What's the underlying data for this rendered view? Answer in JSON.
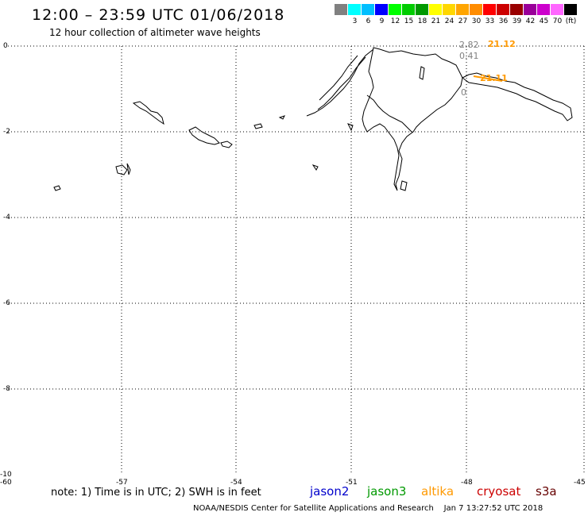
{
  "header": {
    "title": "12:00 – 23:59 UTC 01/06/2018",
    "subtitle": "12 hour collection of altimeter wave heights"
  },
  "color_scale": {
    "colors": [
      "#808080",
      "#00ffff",
      "#00bfff",
      "#0000ff",
      "#00ff00",
      "#00cc00",
      "#009900",
      "#ffff00",
      "#ffd700",
      "#ffa500",
      "#ff8c00",
      "#ff0000",
      "#cc0000",
      "#990000",
      "#990099",
      "#cc00cc",
      "#ff66ff",
      "#000000"
    ],
    "labels": [
      "3",
      "6",
      "9",
      "12",
      "15",
      "18",
      "21",
      "24",
      "27",
      "30",
      "33",
      "36",
      "39",
      "42",
      "45",
      "70"
    ],
    "unit": "(ft)"
  },
  "axes": {
    "y_labels": [
      "0",
      "-2",
      "-4",
      "-6",
      "-8",
      "-10"
    ],
    "x_labels": [
      "-60",
      "-57",
      "-54",
      "-51",
      "-48",
      "-45"
    ]
  },
  "readings": {
    "r1": "2.82",
    "r2": "21.12",
    "r3": "0.41",
    "r4": "21.11",
    "r5": "0"
  },
  "note": "note: 1) Time is in UTC; 2) SWH is in feet",
  "legend": [
    {
      "name": "jason2",
      "color": "#0000cc"
    },
    {
      "name": "jason3",
      "color": "#009900"
    },
    {
      "name": "altika",
      "color": "#ff9900"
    },
    {
      "name": "cryosat",
      "color": "#cc0000"
    },
    {
      "name": "s3a",
      "color": "#660000"
    }
  ],
  "footer": {
    "credit": "NOAA/NESDIS Center for Satellite Applications and Research",
    "timestamp": "Jan  7 13:27:52 UTC 2018"
  },
  "colors": {
    "grid": "#000000",
    "coast": "#000000",
    "altika": "#ff9900"
  }
}
